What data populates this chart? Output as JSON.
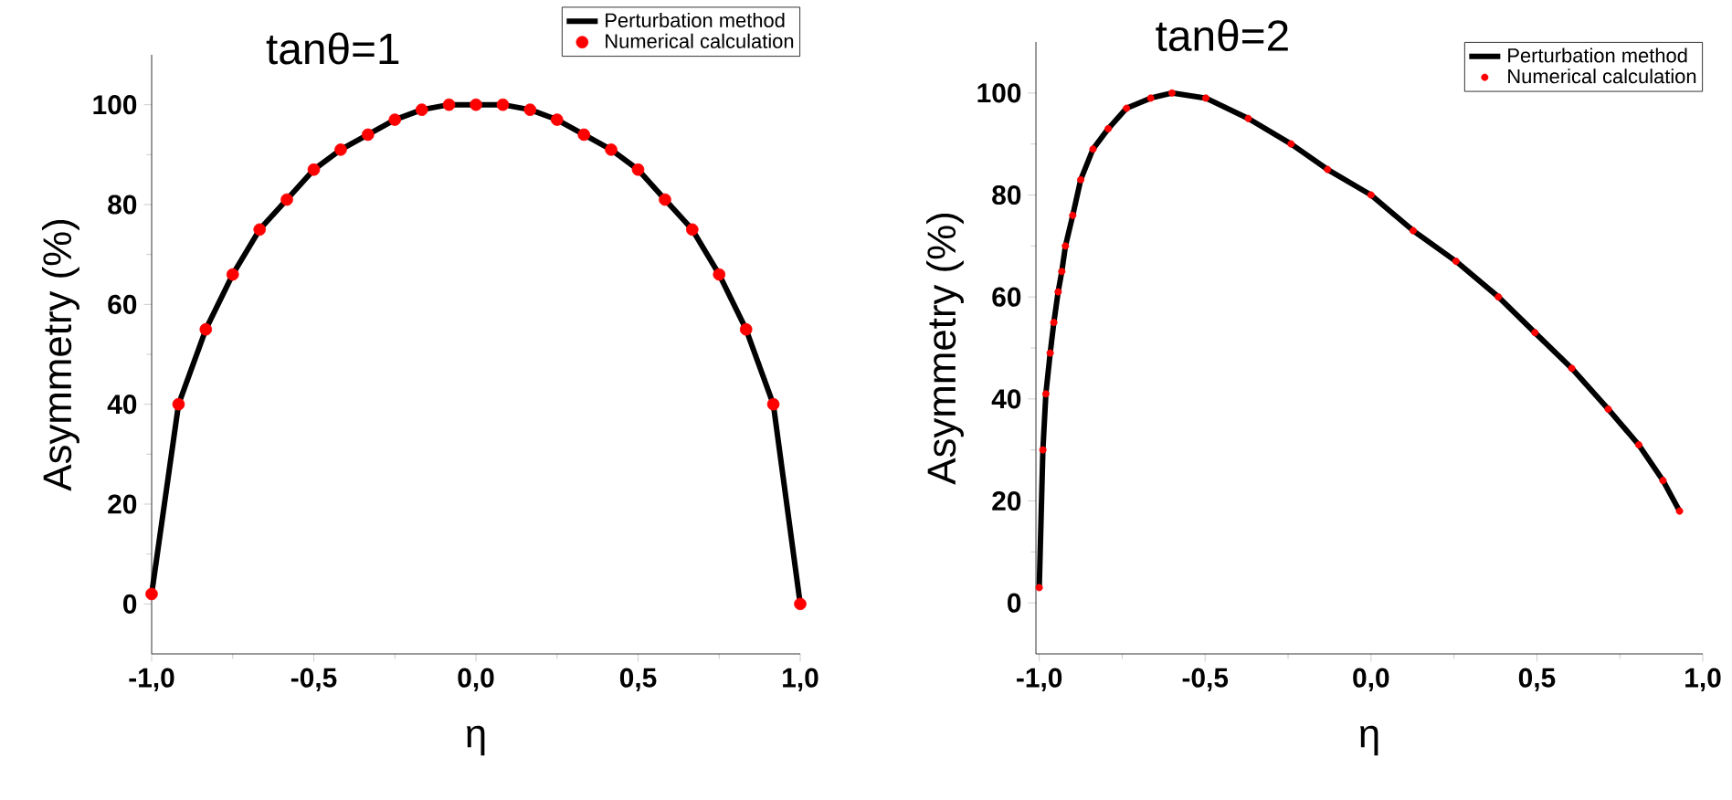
{
  "chart_data": [
    {
      "type": "line",
      "title": "tanθ=1",
      "xlabel": "η",
      "ylabel": "Asymmetry (%)",
      "xlim": [
        -1.0,
        1.0
      ],
      "ylim": [
        -10,
        110
      ],
      "xticks": [
        {
          "value": -1.0,
          "label": "-1,0"
        },
        {
          "value": -0.5,
          "label": "-0,5"
        },
        {
          "value": 0.0,
          "label": "0,0"
        },
        {
          "value": 0.5,
          "label": "0,5"
        },
        {
          "value": 1.0,
          "label": "1,0"
        }
      ],
      "yticks": [
        0,
        20,
        40,
        60,
        80,
        100
      ],
      "legend": "top right",
      "series": [
        {
          "name": "Perturbation method",
          "type": "line",
          "color": "#000000",
          "x": [
            -1.0,
            -0.917,
            -0.833,
            -0.75,
            -0.667,
            -0.583,
            -0.5,
            -0.417,
            -0.333,
            -0.25,
            -0.167,
            -0.083,
            0.0,
            0.083,
            0.167,
            0.25,
            0.333,
            0.417,
            0.5,
            0.583,
            0.667,
            0.75,
            0.833,
            0.917,
            1.0
          ],
          "values": [
            2,
            40,
            55,
            66,
            75,
            81,
            87,
            91,
            94,
            97,
            99,
            100,
            100,
            100,
            99,
            97,
            94,
            91,
            87,
            81,
            75,
            66,
            55,
            40,
            0
          ]
        },
        {
          "name": "Numerical calculation",
          "type": "scatter",
          "marker": "circle",
          "color": "#ff0000",
          "x": [
            -1.0,
            -0.917,
            -0.833,
            -0.75,
            -0.667,
            -0.583,
            -0.5,
            -0.417,
            -0.333,
            -0.25,
            -0.167,
            -0.083,
            0.0,
            0.083,
            0.167,
            0.25,
            0.333,
            0.417,
            0.5,
            0.583,
            0.667,
            0.75,
            0.833,
            0.917,
            1.0
          ],
          "values": [
            2,
            40,
            55,
            66,
            75,
            81,
            87,
            91,
            94,
            97,
            99,
            100,
            100,
            100,
            99,
            97,
            94,
            91,
            87,
            81,
            75,
            66,
            55,
            40,
            0
          ]
        }
      ]
    },
    {
      "type": "line",
      "title": "tanθ=2",
      "xlabel": "η",
      "ylabel": "Asymmetry (%)",
      "xlim": [
        -1.01,
        1.0
      ],
      "ylim": [
        -10,
        110
      ],
      "xticks": [
        {
          "value": -1.0,
          "label": "-1,0"
        },
        {
          "value": -0.5,
          "label": "-0,5"
        },
        {
          "value": 0.0,
          "label": "0,0"
        },
        {
          "value": 0.5,
          "label": "0,5"
        },
        {
          "value": 1.0,
          "label": "1,0"
        }
      ],
      "yticks": [
        0,
        20,
        40,
        60,
        80,
        100
      ],
      "legend": "top right",
      "series": [
        {
          "name": "Perturbation method",
          "type": "line",
          "color": "#000000",
          "x": [
            -1.0,
            -0.989,
            -0.98,
            -0.967,
            -0.956,
            -0.943,
            -0.932,
            -0.921,
            -0.899,
            -0.875,
            -0.838,
            -0.792,
            -0.737,
            -0.664,
            -0.6,
            -0.498,
            -0.37,
            -0.241,
            -0.131,
            0.0,
            0.127,
            0.256,
            0.384,
            0.494,
            0.605,
            0.715,
            0.807,
            0.88,
            0.93
          ],
          "values": [
            3,
            30,
            41,
            49,
            55,
            61,
            65,
            70,
            76,
            83,
            89,
            93,
            97,
            99,
            100,
            99,
            95,
            90,
            85,
            80,
            73,
            67,
            60,
            53,
            46,
            38,
            31,
            24,
            18
          ]
        },
        {
          "name": "Numerical calculation",
          "type": "scatter",
          "marker": "circle",
          "color": "#ff0000",
          "x": [
            -1.0,
            -0.989,
            -0.98,
            -0.967,
            -0.956,
            -0.943,
            -0.932,
            -0.921,
            -0.899,
            -0.875,
            -0.838,
            -0.792,
            -0.737,
            -0.664,
            -0.6,
            -0.498,
            -0.37,
            -0.241,
            -0.131,
            0.0,
            0.127,
            0.256,
            0.384,
            0.494,
            0.605,
            0.715,
            0.807,
            0.88,
            0.93
          ],
          "values": [
            3,
            30,
            41,
            49,
            55,
            61,
            65,
            70,
            76,
            83,
            89,
            93,
            97,
            99,
            100,
            99,
            95,
            90,
            85,
            80,
            73,
            67,
            60,
            53,
            46,
            38,
            31,
            24,
            18
          ]
        }
      ]
    }
  ]
}
